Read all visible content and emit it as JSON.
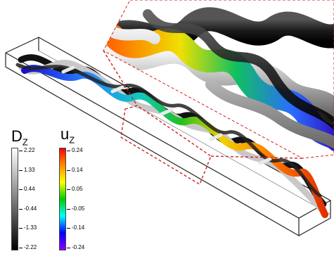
{
  "colorbar_dz": {
    "symbol": "D",
    "subscript": "Z",
    "ticks": [
      "2.22",
      "1.33",
      "0.44",
      "-0.44",
      "-1.33",
      "-2.22"
    ],
    "colors": [
      "#ffffff",
      "#000000"
    ]
  },
  "colorbar_uz": {
    "symbol": "u",
    "subscript": "Z",
    "ticks": [
      "0.24",
      "0.14",
      "0.05",
      "-0.05",
      "-0.14",
      "-0.24"
    ],
    "colors": [
      "#ff0000",
      "#ff8c00",
      "#ffff00",
      "#00cc00",
      "#00ffff",
      "#0000ff",
      "#8800ff"
    ]
  },
  "accent": {
    "zoom_outline": "#d42020"
  }
}
